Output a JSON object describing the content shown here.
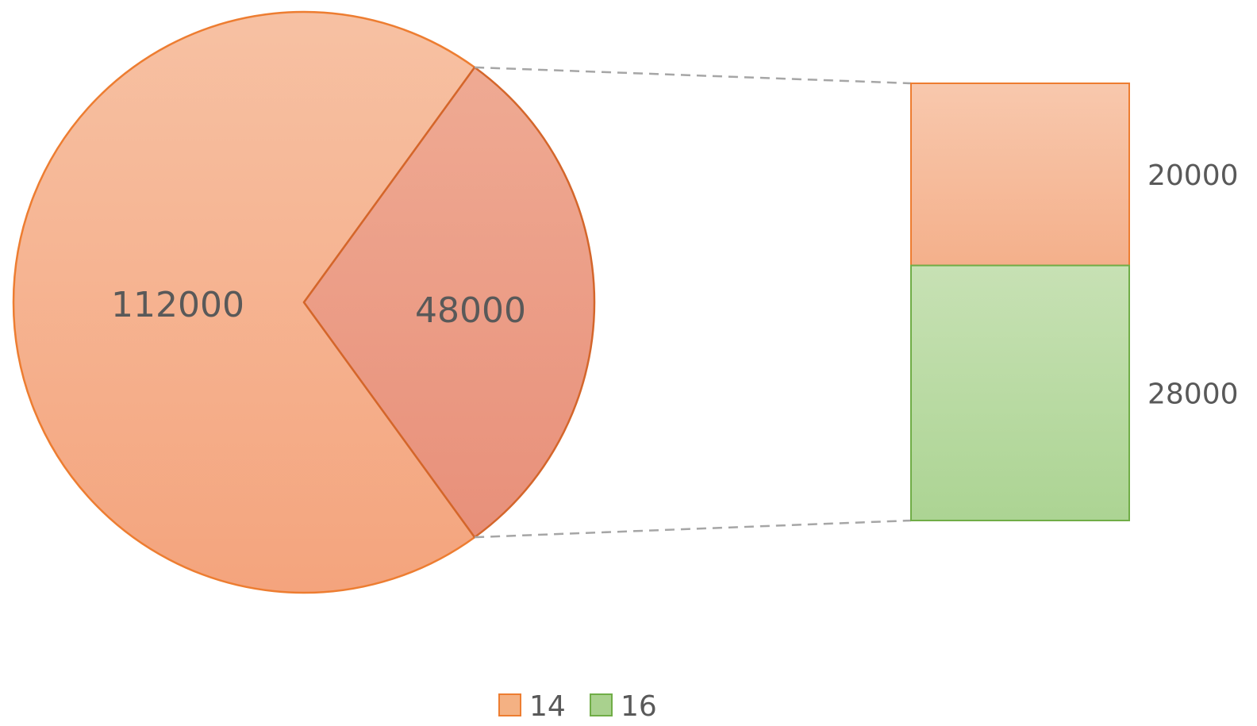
{
  "chart_data": {
    "type": "pie",
    "subtype": "bar-of-pie",
    "pie": {
      "slices": [
        {
          "label": "112000",
          "value": 112000,
          "role": "main"
        },
        {
          "label": "48000",
          "value": 48000,
          "role": "other"
        }
      ]
    },
    "bar": {
      "segments": [
        {
          "label": "20000",
          "value": 20000,
          "series": "14"
        },
        {
          "label": "28000",
          "value": 28000,
          "series": "16"
        }
      ]
    },
    "legend": {
      "position": "bottom",
      "items": [
        {
          "name": "14",
          "color": "#f4b183"
        },
        {
          "name": "16",
          "color": "#a9d18e"
        }
      ]
    },
    "colors": {
      "series_14_fill": "#f4b183",
      "series_14_border": "#ed7d31",
      "series_16_fill": "#a9d18e",
      "series_16_border": "#70ad47",
      "other_slice_fill": "#e8957a",
      "connector": "#a6a6a6",
      "label_text": "#595959"
    }
  }
}
